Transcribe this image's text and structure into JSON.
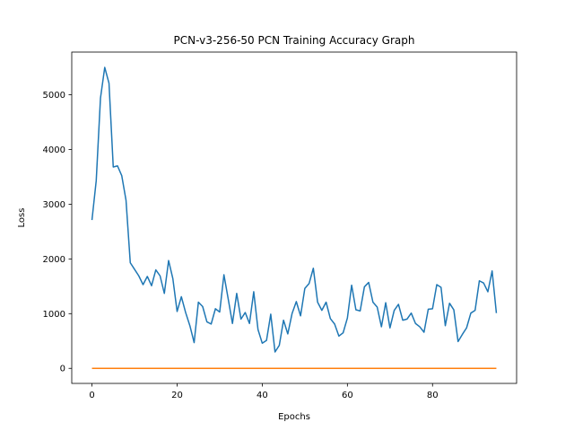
{
  "chart_data": {
    "type": "line",
    "title": "PCN-v3-256-50 PCN Training Accuracy Graph",
    "xlabel": "Epochs",
    "ylabel": "Loss",
    "xlim": [
      -4.75,
      99.75
    ],
    "ylim": [
      -275,
      5780
    ],
    "grid": false,
    "x_ticks": [
      0,
      20,
      40,
      60,
      80
    ],
    "y_ticks": [
      0,
      1000,
      2000,
      3000,
      4000,
      5000
    ],
    "series": [
      {
        "color": "#1f77b4",
        "x": [
          0,
          1,
          2,
          3,
          4,
          5,
          6,
          7,
          8,
          9,
          10,
          11,
          12,
          13,
          14,
          15,
          16,
          17,
          18,
          19,
          20,
          21,
          22,
          23,
          24,
          25,
          26,
          27,
          28,
          29,
          30,
          31,
          32,
          33,
          34,
          35,
          36,
          37,
          38,
          39,
          40,
          41,
          42,
          43,
          44,
          45,
          46,
          47,
          48,
          49,
          50,
          51,
          52,
          53,
          54,
          55,
          56,
          57,
          58,
          59,
          60,
          61,
          62,
          63,
          64,
          65,
          66,
          67,
          68,
          69,
          70,
          71,
          72,
          73,
          74,
          75,
          76,
          77,
          78,
          79,
          80,
          81,
          82,
          83,
          84,
          85,
          86,
          87,
          88,
          89,
          90,
          91,
          92,
          93,
          94,
          95
        ],
        "values": [
          2710,
          3430,
          4940,
          5500,
          5210,
          3680,
          3700,
          3520,
          3070,
          1930,
          1810,
          1690,
          1530,
          1680,
          1510,
          1800,
          1690,
          1370,
          1970,
          1640,
          1040,
          1310,
          1020,
          780,
          470,
          1210,
          1130,
          850,
          810,
          1090,
          1030,
          1710,
          1270,
          820,
          1370,
          900,
          1020,
          820,
          1400,
          710,
          460,
          510,
          990,
          300,
          420,
          880,
          630,
          1000,
          1220,
          960,
          1460,
          1550,
          1830,
          1210,
          1060,
          1210,
          910,
          810,
          590,
          650,
          920,
          1520,
          1070,
          1050,
          1490,
          1570,
          1210,
          1120,
          760,
          1200,
          740,
          1060,
          1170,
          880,
          900,
          1010,
          820,
          760,
          660,
          1080,
          1090,
          1530,
          1480,
          780,
          1190,
          1070,
          490,
          620,
          740,
          1010,
          1060,
          1600,
          1560,
          1400,
          1780,
          1010
        ]
      },
      {
        "color": "#ff7f0e",
        "x": [
          0,
          1,
          2,
          3,
          4,
          5,
          6,
          7,
          8,
          9,
          10,
          11,
          12,
          13,
          14,
          15,
          16,
          17,
          18,
          19,
          20,
          21,
          22,
          23,
          24,
          25,
          26,
          27,
          28,
          29,
          30,
          31,
          32,
          33,
          34,
          35,
          36,
          37,
          38,
          39,
          40,
          41,
          42,
          43,
          44,
          45,
          46,
          47,
          48,
          49,
          50,
          51,
          52,
          53,
          54,
          55,
          56,
          57,
          58,
          59,
          60,
          61,
          62,
          63,
          64,
          65,
          66,
          67,
          68,
          69,
          70,
          71,
          72,
          73,
          74,
          75,
          76,
          77,
          78,
          79,
          80,
          81,
          82,
          83,
          84,
          85,
          86,
          87,
          88,
          89,
          90,
          91,
          92,
          93,
          94,
          95
        ],
        "values": [
          0,
          0,
          0,
          0,
          0,
          0,
          0,
          0,
          0,
          0,
          0,
          0,
          0,
          0,
          0,
          0,
          0,
          0,
          0,
          0,
          0,
          0,
          0,
          0,
          0,
          0,
          0,
          0,
          0,
          0,
          0,
          0,
          0,
          0,
          0,
          0,
          0,
          0,
          0,
          0,
          0,
          0,
          0,
          0,
          0,
          0,
          0,
          0,
          0,
          0,
          0,
          0,
          0,
          0,
          0,
          0,
          0,
          0,
          0,
          0,
          0,
          0,
          0,
          0,
          0,
          0,
          0,
          0,
          0,
          0,
          0,
          0,
          0,
          0,
          0,
          0,
          0,
          0,
          0,
          0,
          0,
          0,
          0,
          0,
          0,
          0,
          0,
          0,
          0,
          0,
          0,
          0,
          0,
          0,
          0,
          0
        ]
      }
    ]
  }
}
